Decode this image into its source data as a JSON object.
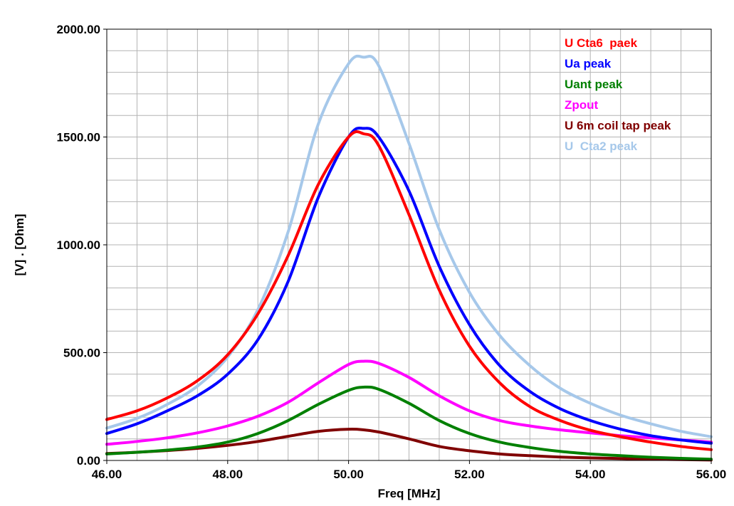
{
  "chart_data": {
    "type": "line",
    "xlabel": "Freq [MHz]",
    "ylabel": "[V] . [Ohm]",
    "xlim": [
      46,
      56
    ],
    "ylim": [
      0,
      2000
    ],
    "x_ticks": [
      "46.00",
      "48.00",
      "50.00",
      "52.00",
      "54.00",
      "56.00"
    ],
    "y_ticks": [
      "0.00",
      "500.00",
      "1000.00",
      "1500.00",
      "2000.00"
    ],
    "grid": true,
    "legend_position": "top-right",
    "x": [
      46.0,
      46.5,
      47.0,
      47.5,
      48.0,
      48.5,
      49.0,
      49.5,
      50.0,
      50.25,
      50.5,
      51.0,
      51.5,
      52.0,
      52.5,
      53.0,
      53.5,
      54.0,
      54.5,
      55.0,
      55.5,
      56.0
    ],
    "series": [
      {
        "name": "U Cta6  paek",
        "color": "#ff0000",
        "values": [
          190,
          230,
          290,
          370,
          490,
          680,
          950,
          1280,
          1500,
          1515,
          1460,
          1140,
          790,
          530,
          360,
          250,
          185,
          140,
          110,
          85,
          65,
          50
        ]
      },
      {
        "name": "Ua peak",
        "color": "#0000ff",
        "values": [
          125,
          170,
          230,
          300,
          400,
          560,
          830,
          1220,
          1500,
          1540,
          1500,
          1250,
          900,
          630,
          440,
          320,
          240,
          185,
          145,
          115,
          95,
          80
        ]
      },
      {
        "name": "Uant peak",
        "color": "#008000",
        "values": [
          30,
          38,
          48,
          62,
          85,
          125,
          185,
          260,
          325,
          340,
          330,
          265,
          185,
          125,
          85,
          60,
          42,
          30,
          22,
          15,
          10,
          6
        ]
      },
      {
        "name": "Zpout",
        "color": "#ff00ff",
        "values": [
          75,
          88,
          105,
          128,
          160,
          205,
          270,
          360,
          445,
          460,
          450,
          385,
          300,
          230,
          185,
          160,
          142,
          128,
          115,
          105,
          95,
          85
        ]
      },
      {
        "name": "U 6m coil tap peak",
        "color": "#800000",
        "values": [
          32,
          38,
          46,
          56,
          70,
          88,
          112,
          135,
          145,
          142,
          132,
          100,
          65,
          45,
          30,
          22,
          16,
          12,
          9,
          6,
          4,
          2
        ]
      },
      {
        "name": "U  Cta2 peak",
        "color": "#a6c8ea",
        "values": [
          150,
          195,
          260,
          345,
          480,
          700,
          1060,
          1560,
          1840,
          1870,
          1830,
          1470,
          1070,
          780,
          580,
          440,
          335,
          265,
          210,
          170,
          135,
          110
        ]
      }
    ]
  }
}
